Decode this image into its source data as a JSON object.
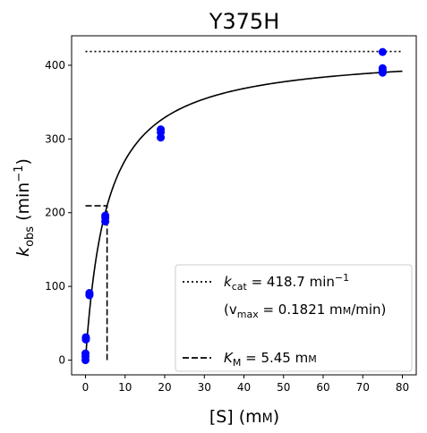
{
  "chart_data": {
    "type": "scatter",
    "title": "Y375H",
    "xlabel": {
      "main": "[S] (m",
      "unit_sc": "M",
      "close": ")"
    },
    "ylabel": {
      "sym": "k",
      "sub": "obs",
      "unit": " (min",
      "sup": "−1",
      "close": ")"
    },
    "xlim": [
      -3.5,
      83.5
    ],
    "ylim": [
      -20,
      440
    ],
    "xticks": [
      0,
      10,
      20,
      30,
      40,
      50,
      60,
      70,
      80
    ],
    "yticks": [
      0,
      100,
      200,
      300,
      400
    ],
    "grid": false,
    "legend_position": "lower-right",
    "series": [
      {
        "kind": "points",
        "color": "#0000ff",
        "x": [
          0,
          0,
          0,
          0.1,
          0.1,
          0.1,
          1,
          1,
          1,
          5,
          5,
          5,
          19,
          19,
          19,
          75,
          75,
          75,
          75
        ],
        "y": [
          0,
          5,
          9,
          28,
          30,
          31,
          88,
          89,
          91,
          188,
          193,
          196,
          302,
          309,
          313,
          390,
          393,
          396,
          418
        ]
      },
      {
        "kind": "michaelis-menten-fit",
        "color": "#000000",
        "kcat": 418.7,
        "KM": 5.45,
        "x_range": [
          0,
          80
        ]
      },
      {
        "kind": "kcat-line",
        "style": "dotted",
        "y": 418.7,
        "x_range": [
          0,
          80
        ]
      },
      {
        "kind": "KM-line",
        "style": "dashed",
        "horizontal": {
          "y": 209.35,
          "x_range": [
            0,
            5.45
          ]
        },
        "vertical": {
          "x": 5.45,
          "y_range": [
            0,
            209.35
          ]
        }
      }
    ],
    "legend": {
      "kcat_sym": "k",
      "kcat_sub": "cat",
      "kcat_value": " = 418.7 min",
      "kcat_sup": "−1",
      "vmax_open": "(v",
      "vmax_sub": "max",
      "vmax_value": " = 0.1821 m",
      "vmax_unit_sc": "M",
      "vmax_close": "/min)",
      "km_sym": "K",
      "km_sub": "M",
      "km_value": " = 5.45 m",
      "km_unit_sc": "M"
    }
  }
}
